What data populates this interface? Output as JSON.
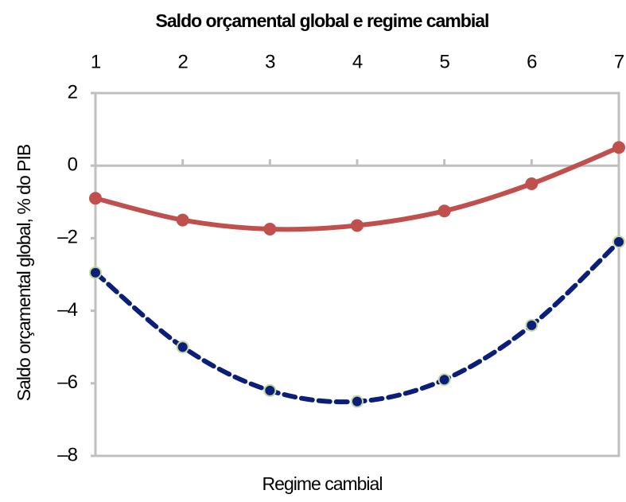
{
  "chart_data": {
    "type": "line",
    "title": "Saldo orçamental global e regime cambial",
    "x_label": "Regime cambial",
    "y_label": "Saldo orçamental global, % do PIB",
    "x": [
      1,
      2,
      3,
      4,
      5,
      6,
      7
    ],
    "xlim": [
      1,
      7
    ],
    "xticks": [
      1,
      2,
      3,
      4,
      5,
      6,
      7
    ],
    "ylim": [
      -8,
      2
    ],
    "yticks": [
      {
        "value": -8,
        "label": "–8"
      },
      {
        "value": -6,
        "label": "–6"
      },
      {
        "value": -4,
        "label": "–4"
      },
      {
        "value": -2,
        "label": "–2"
      },
      0,
      2
    ],
    "series": [
      {
        "color": "#c0504d",
        "dashed": false,
        "values": [
          -0.9,
          -1.5,
          -1.75,
          -1.65,
          -1.25,
          -0.5,
          0.5
        ]
      },
      {
        "color": "#0b1f7a",
        "dashed": true,
        "values": [
          -2.95,
          -5.0,
          -6.2,
          -6.5,
          -5.9,
          -4.4,
          -2.1
        ]
      }
    ]
  }
}
